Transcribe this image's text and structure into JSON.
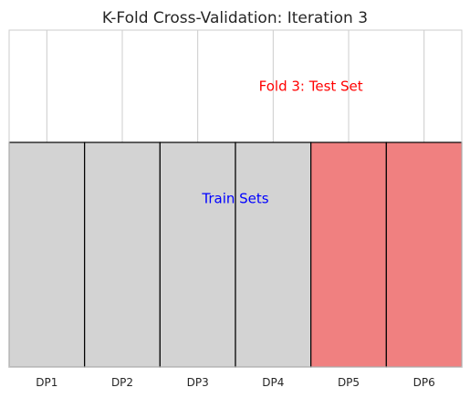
{
  "chart_data": {
    "type": "bar",
    "title": "K-Fold Cross-Validation: Iteration 3",
    "xlabel": "",
    "ylabel": "",
    "categories": [
      "DP1",
      "DP2",
      "DP3",
      "DP4",
      "DP5",
      "DP6"
    ],
    "values": [
      1,
      1,
      1,
      1,
      1,
      1
    ],
    "ylim": [
      0,
      1.5
    ],
    "roles": [
      "train",
      "train",
      "train",
      "train",
      "test",
      "test"
    ],
    "colors": {
      "train": "#d3d3d3",
      "test": "#f08080",
      "edge": "#000000"
    },
    "grid": true,
    "annotations": [
      {
        "text": "Fold 3: Test Set",
        "x": 3.5,
        "y": 1.25,
        "color": "#ff0000"
      },
      {
        "text": "Train Sets",
        "x": 2.5,
        "y": 0.75,
        "color": "#0000ff"
      }
    ]
  }
}
